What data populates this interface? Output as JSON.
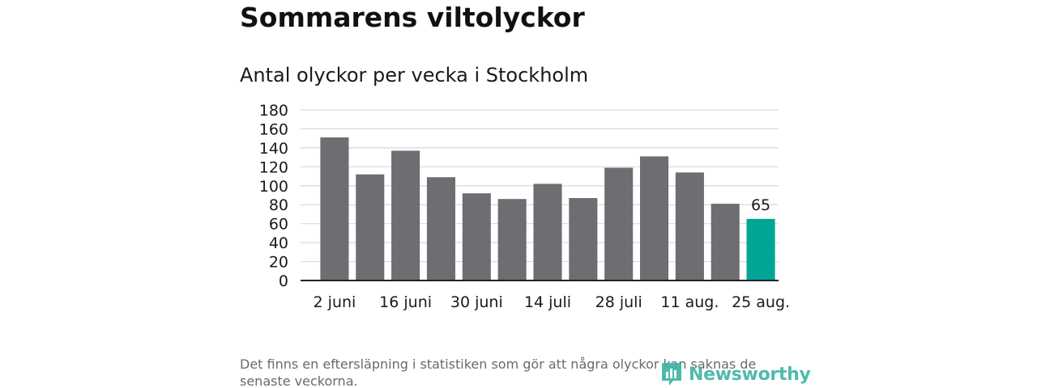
{
  "header": {
    "title": "Sommarens viltolyckor",
    "subtitle": "Antal olyckor per vecka i Stockholm"
  },
  "footer": {
    "note": "Det finns en eftersläpning i statistiken som gör att några olyckor kan saknas de senaste veckorna.",
    "logo_text": "Newsworthy"
  },
  "colors": {
    "bar": "#6e6d72",
    "highlight": "#00a596",
    "grid": "#d9d9d9",
    "axis": "#222222",
    "logo": "#3fb5a6"
  },
  "chart_data": {
    "type": "bar",
    "title": "Antal olyckor per vecka i Stockholm",
    "xlabel": "",
    "ylabel": "",
    "ylim": [
      0,
      180
    ],
    "yticks": [
      0,
      20,
      40,
      60,
      80,
      100,
      120,
      140,
      160,
      180
    ],
    "grid": true,
    "values": [
      151,
      112,
      137,
      109,
      92,
      86,
      102,
      87,
      119,
      131,
      114,
      81,
      65
    ],
    "xtick_labels": [
      {
        "index": 0,
        "label": "2 juni"
      },
      {
        "index": 2,
        "label": "16 juni"
      },
      {
        "index": 4,
        "label": "30 juni"
      },
      {
        "index": 6,
        "label": "14 juli"
      },
      {
        "index": 8,
        "label": "28 juli"
      },
      {
        "index": 10,
        "label": "11 aug."
      },
      {
        "index": 12,
        "label": "25 aug."
      }
    ],
    "highlight_index": 12,
    "data_labels": [
      {
        "index": 12,
        "label": "65"
      }
    ]
  }
}
